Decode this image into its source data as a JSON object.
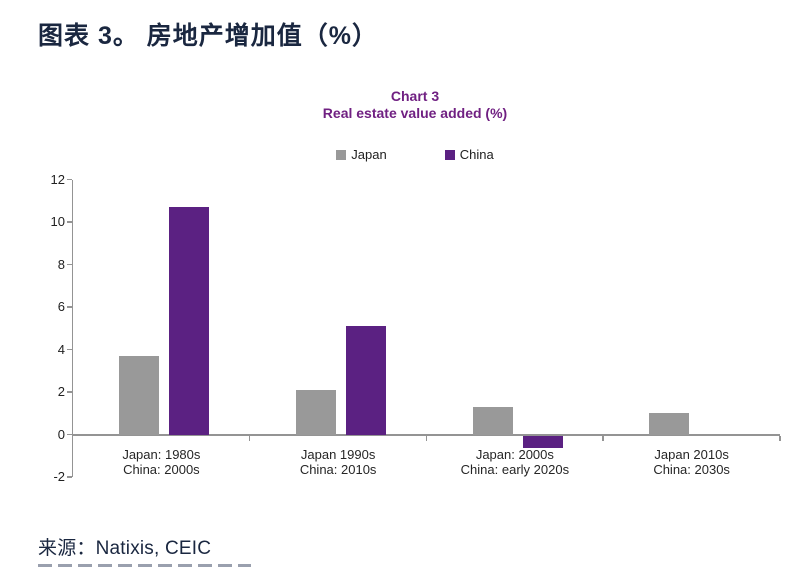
{
  "page": {
    "title": "图表 3。 房地产增加值（%）",
    "source": "来源：Natixis, CEIC"
  },
  "chart_data": {
    "type": "bar",
    "title": "Chart 3",
    "subtitle": "Real estate value added (%)",
    "title_color": "#702082",
    "categories": [
      [
        "Japan: 1980s",
        "China: 2000s"
      ],
      [
        "Japan 1990s",
        "China: 2010s"
      ],
      [
        "Japan: 2000s",
        "China: early 2020s"
      ],
      [
        "Japan 2010s",
        "China: 2030s"
      ]
    ],
    "series": [
      {
        "name": "Japan",
        "color": "#999999",
        "values": [
          3.7,
          2.1,
          1.3,
          1.0
        ]
      },
      {
        "name": "China",
        "color": "#5B2182",
        "values": [
          10.7,
          5.1,
          -0.6,
          0
        ]
      }
    ],
    "ylim": [
      -2,
      12
    ],
    "yticks": [
      12,
      10,
      8,
      6,
      4,
      2,
      0,
      -2
    ],
    "grid": false,
    "legend_position": "top-center",
    "axis_color": "#949494"
  }
}
